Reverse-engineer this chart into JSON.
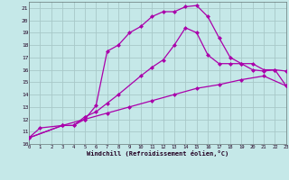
{
  "xlabel": "Windchill (Refroidissement éolien,°C)",
  "background_color": "#c5e8e8",
  "grid_color": "#a8c8c8",
  "line_color": "#aa00aa",
  "xlim": [
    0,
    23
  ],
  "ylim": [
    10,
    21.5
  ],
  "xticks": [
    0,
    1,
    2,
    3,
    4,
    5,
    6,
    7,
    8,
    9,
    10,
    11,
    12,
    13,
    14,
    15,
    16,
    17,
    18,
    19,
    20,
    21,
    22,
    23
  ],
  "yticks": [
    10,
    11,
    12,
    13,
    14,
    15,
    16,
    17,
    18,
    19,
    20,
    21
  ],
  "curve1_x": [
    0,
    1,
    3,
    4,
    5,
    6,
    7,
    8,
    9,
    10,
    11,
    12,
    13,
    14,
    15,
    16,
    17,
    18,
    19,
    20,
    21,
    22,
    23
  ],
  "curve1_y": [
    10.5,
    11.3,
    11.5,
    11.5,
    12.0,
    13.1,
    17.5,
    18.0,
    19.0,
    19.5,
    20.3,
    20.7,
    20.7,
    21.1,
    21.2,
    20.3,
    18.6,
    17.0,
    16.5,
    16.0,
    15.9,
    16.0,
    15.9
  ],
  "curve2_x": [
    0,
    3,
    4,
    5,
    6,
    7,
    8,
    10,
    11,
    12,
    13,
    14,
    15,
    16,
    17,
    18,
    19,
    20,
    21,
    22,
    23
  ],
  "curve2_y": [
    10.5,
    11.5,
    11.5,
    12.2,
    12.6,
    13.3,
    14.0,
    15.5,
    16.2,
    16.8,
    18.0,
    19.4,
    19.0,
    17.2,
    16.5,
    16.5,
    16.5,
    16.5,
    16.0,
    16.0,
    14.7
  ],
  "curve3_x": [
    0,
    3,
    5,
    7,
    9,
    11,
    13,
    15,
    17,
    19,
    21,
    23
  ],
  "curve3_y": [
    10.5,
    11.5,
    12.0,
    12.5,
    13.0,
    13.5,
    14.0,
    14.5,
    14.8,
    15.2,
    15.5,
    14.7
  ],
  "markersize": 2.5,
  "linewidth": 0.9
}
